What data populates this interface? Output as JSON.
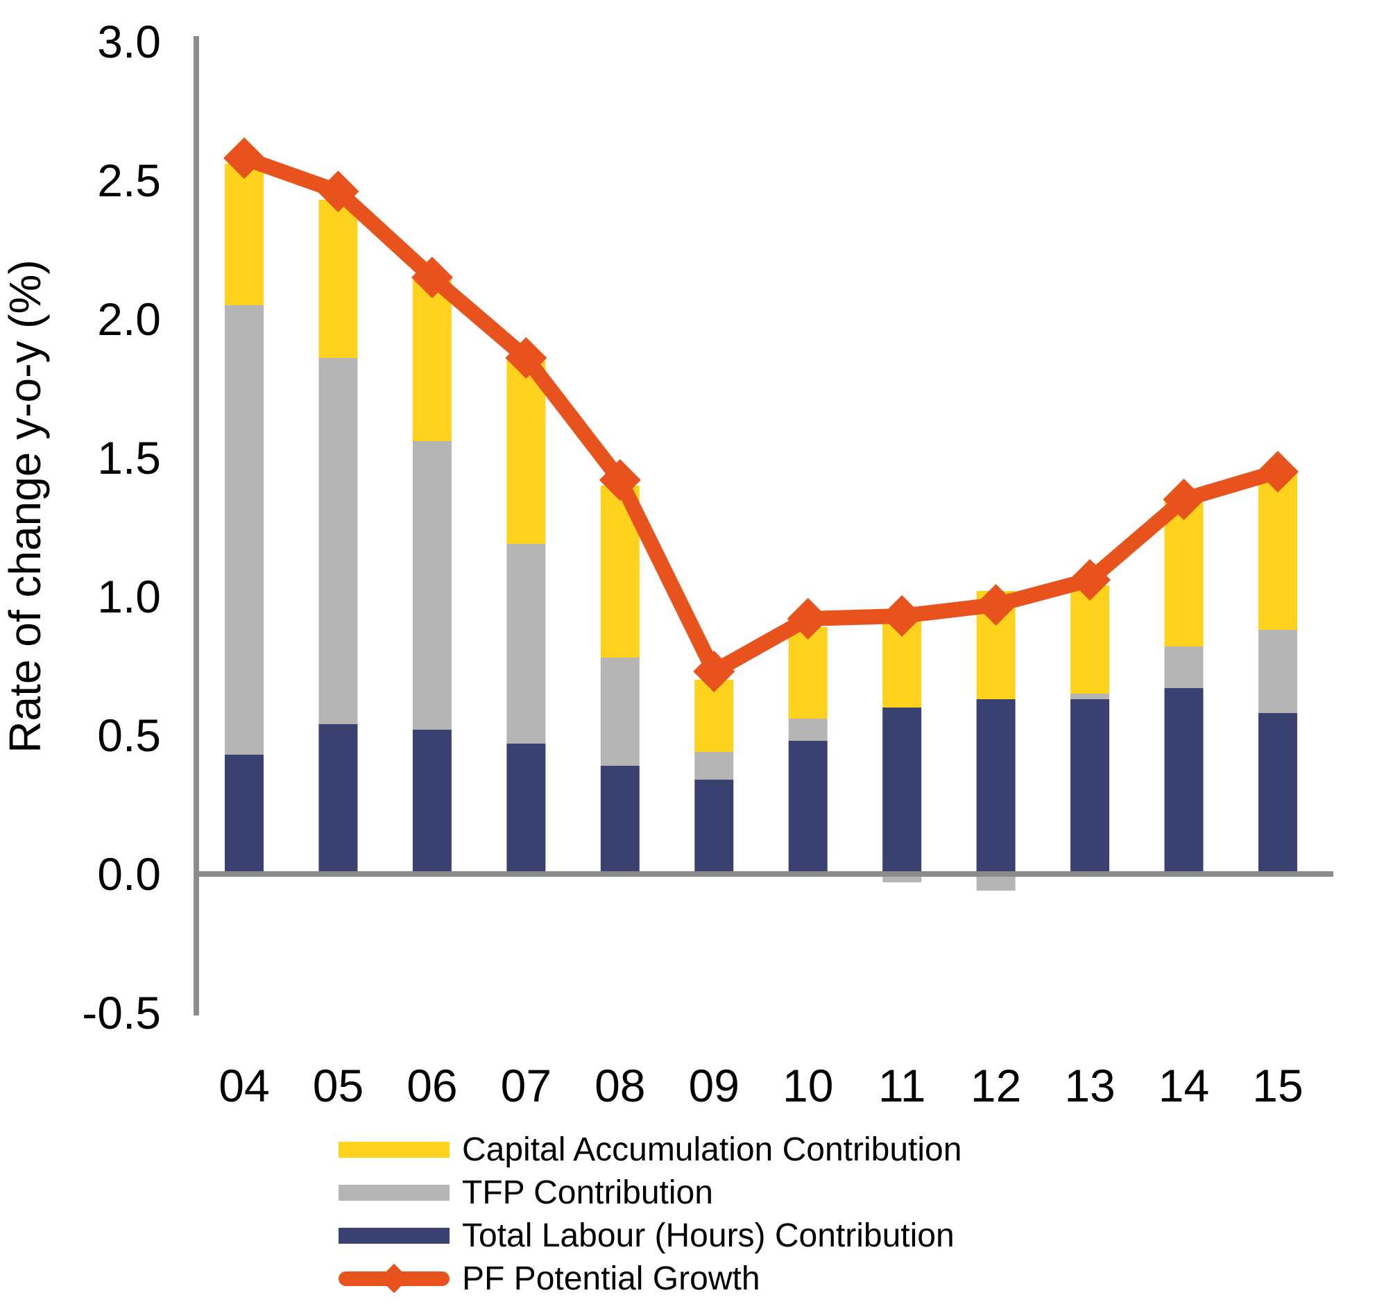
{
  "y_axis": {
    "title": "Rate of change y-o-y (%)",
    "tick_labels": [
      "3.0",
      "2.5",
      "2.0",
      "1.5",
      "1.0",
      "0.5",
      "0.0",
      "-0.5"
    ]
  },
  "chart_data": {
    "type": "bar",
    "subtype": "stacked-bar-with-line-overlay",
    "categories": [
      "04",
      "05",
      "06",
      "07",
      "08",
      "09",
      "10",
      "11",
      "12",
      "13",
      "14",
      "15"
    ],
    "series": [
      {
        "key": "capital",
        "name": "Capital Accumulation Contribution",
        "type": "bar",
        "color": "#FFD21E",
        "values": [
          0.51,
          0.57,
          0.58,
          0.66,
          0.62,
          0.26,
          0.33,
          0.31,
          0.39,
          0.39,
          0.53,
          0.57
        ]
      },
      {
        "key": "tfp",
        "name": "TFP Contribution",
        "type": "bar",
        "color": "#B5B5B5",
        "values": [
          1.62,
          1.32,
          1.04,
          0.72,
          0.39,
          0.1,
          0.08,
          -0.03,
          -0.06,
          0.02,
          0.15,
          0.3
        ]
      },
      {
        "key": "labour",
        "name": "Total Labour (Hours) Contribution",
        "type": "bar",
        "color": "#3A4170",
        "values": [
          0.43,
          0.54,
          0.52,
          0.47,
          0.39,
          0.34,
          0.48,
          0.6,
          0.63,
          0.63,
          0.67,
          0.58
        ]
      },
      {
        "key": "pf",
        "name": "PF Potential Growth",
        "type": "line",
        "marker": "diamond",
        "color": "#E8521C",
        "values": [
          2.58,
          2.46,
          2.15,
          1.86,
          1.42,
          0.73,
          0.92,
          0.93,
          0.97,
          1.06,
          1.35,
          1.45
        ]
      }
    ],
    "stack_order_bottom_to_top": [
      "labour",
      "tfp",
      "capital"
    ],
    "title": "",
    "xlabel": "",
    "ylabel": "Rate of change y-o-y (%)",
    "ylim": [
      -0.5,
      3.0
    ],
    "ytick_step": 0.5,
    "grid": false,
    "legend_position": "bottom",
    "axis_color": "#8C8C8C"
  }
}
